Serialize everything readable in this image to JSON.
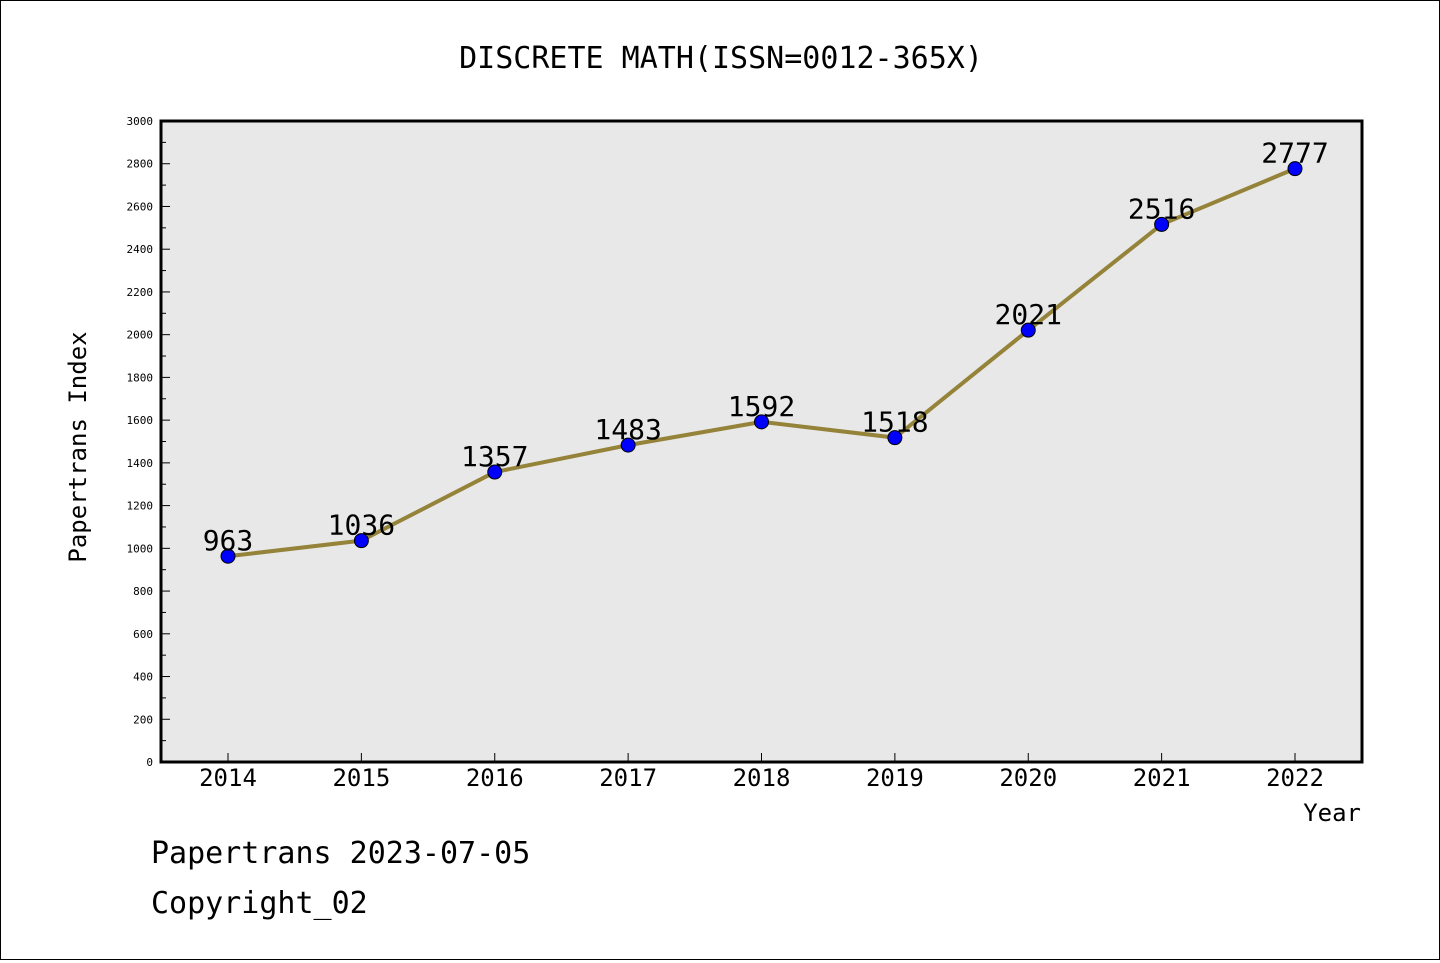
{
  "chart_data": {
    "type": "line",
    "title": "DISCRETE MATH(ISSN=0012-365X)",
    "xlabel": "Year",
    "ylabel": "Papertrans Index",
    "categories": [
      "2014",
      "2015",
      "2016",
      "2017",
      "2018",
      "2019",
      "2020",
      "2021",
      "2022"
    ],
    "series": [
      {
        "values": [
          963,
          1036,
          1357,
          1483,
          1592,
          1518,
          2021,
          2516,
          2777
        ],
        "line_color": "#948339",
        "marker_color": "#0000ff"
      }
    ],
    "ylim": [
      0,
      3000
    ],
    "yticks": [
      0,
      200,
      400,
      600,
      800,
      1000,
      1200,
      1400,
      1600,
      1800,
      2000,
      2200,
      2400,
      2600,
      2800,
      3000
    ],
    "plot_background": "#e8e8e8",
    "grid": false,
    "data_labels": true
  },
  "footer": {
    "line1": "Papertrans 2023-07-05",
    "line2": "Copyright_02"
  }
}
